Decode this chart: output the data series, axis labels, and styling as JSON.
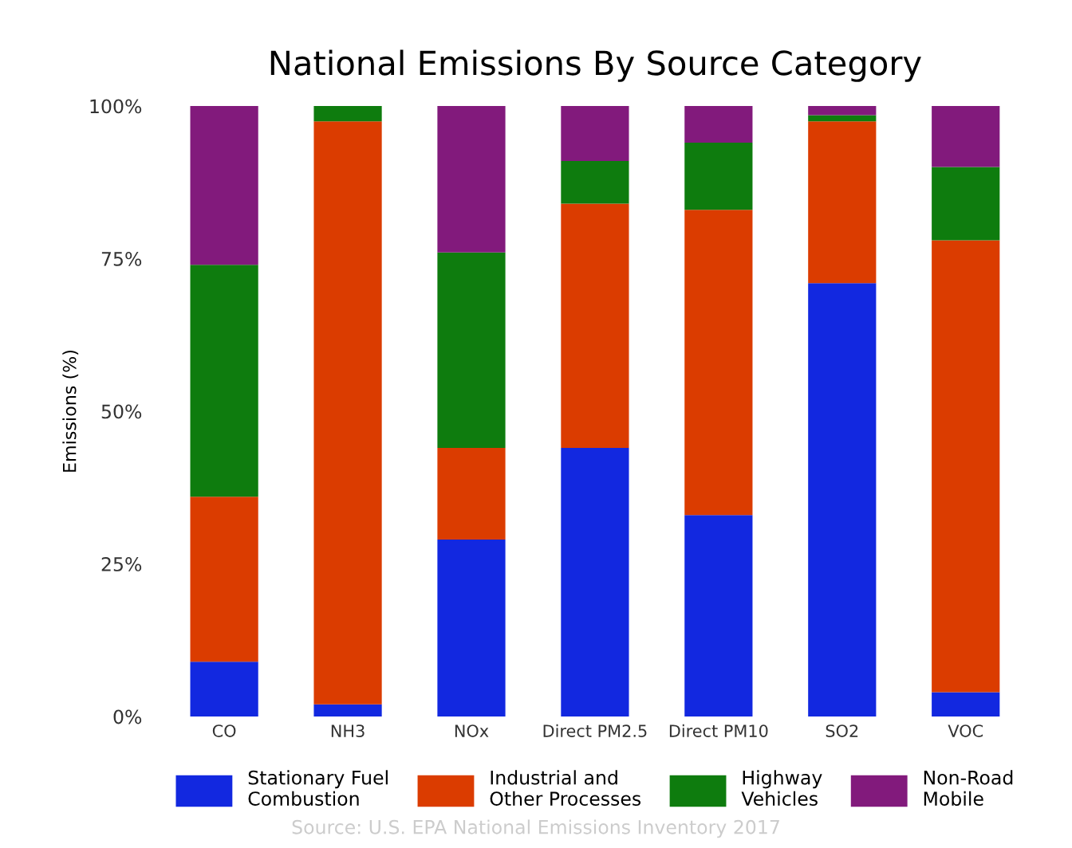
{
  "chart_data": {
    "type": "bar",
    "stacked": true,
    "title": "National Emissions By Source Category",
    "ylabel": "Emissions (%)",
    "categories": [
      "CO",
      "NH3",
      "NOx",
      "Direct PM2.5",
      "Direct PM10",
      "SO2",
      "VOC"
    ],
    "series": [
      {
        "name": "Stationary Fuel\nCombustion",
        "color": "#1228e0",
        "values": [
          9,
          2,
          29,
          44,
          33,
          71,
          4
        ]
      },
      {
        "name": "Industrial and\nOther Processes",
        "color": "#db3c00",
        "values": [
          27,
          95.5,
          15,
          40,
          50,
          26.5,
          74
        ]
      },
      {
        "name": "Highway\nVehicles",
        "color": "#0e7c0e",
        "values": [
          38,
          2.5,
          32,
          7,
          11,
          1,
          12
        ]
      },
      {
        "name": "Non-Road\nMobile",
        "color": "#821a7c",
        "values": [
          26,
          0,
          24,
          9,
          6,
          1.5,
          10
        ]
      }
    ],
    "ylim": [
      0,
      100
    ],
    "yticks": [
      {
        "value": 0,
        "label": "0%"
      },
      {
        "value": 25,
        "label": "25%"
      },
      {
        "value": 50,
        "label": "50%"
      },
      {
        "value": 75,
        "label": "75%"
      },
      {
        "value": 100,
        "label": "100%"
      }
    ],
    "legend": "bottom",
    "annotations": [
      "Source: U.S. EPA National Emissions Inventory 2017"
    ]
  }
}
